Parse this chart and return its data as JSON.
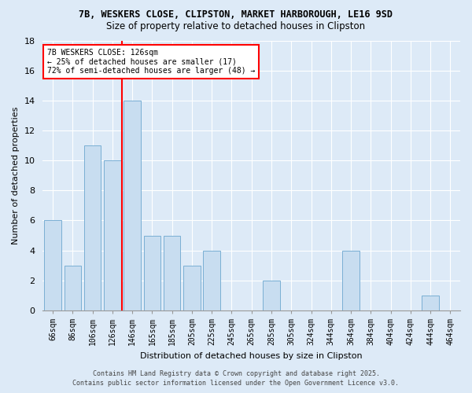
{
  "title1": "7B, WESKERS CLOSE, CLIPSTON, MARKET HARBOROUGH, LE16 9SD",
  "title2": "Size of property relative to detached houses in Clipston",
  "xlabel": "Distribution of detached houses by size in Clipston",
  "ylabel": "Number of detached properties",
  "categories": [
    "66sqm",
    "86sqm",
    "106sqm",
    "126sqm",
    "146sqm",
    "165sqm",
    "185sqm",
    "205sqm",
    "225sqm",
    "245sqm",
    "265sqm",
    "285sqm",
    "305sqm",
    "324sqm",
    "344sqm",
    "364sqm",
    "384sqm",
    "404sqm",
    "424sqm",
    "444sqm",
    "464sqm"
  ],
  "values": [
    6,
    3,
    11,
    10,
    14,
    5,
    5,
    3,
    4,
    0,
    0,
    2,
    0,
    0,
    0,
    4,
    0,
    0,
    0,
    1,
    0
  ],
  "bar_color": "#c8ddf0",
  "bar_edge_color": "#7aafd4",
  "red_line_index": 3.5,
  "annotation_text": "7B WESKERS CLOSE: 126sqm\n← 25% of detached houses are smaller (17)\n72% of semi-detached houses are larger (48) →",
  "ylim": [
    0,
    18
  ],
  "yticks": [
    0,
    2,
    4,
    6,
    8,
    10,
    12,
    14,
    16,
    18
  ],
  "footer_line1": "Contains HM Land Registry data © Crown copyright and database right 2025.",
  "footer_line2": "Contains public sector information licensed under the Open Government Licence v3.0.",
  "bg_color": "#ddeaf7",
  "grid_color": "#ffffff",
  "title1_fontsize": 8.5,
  "title2_fontsize": 8.5,
  "xlabel_fontsize": 8,
  "ylabel_fontsize": 8,
  "tick_fontsize": 7,
  "footer_fontsize": 6,
  "annot_fontsize": 7
}
